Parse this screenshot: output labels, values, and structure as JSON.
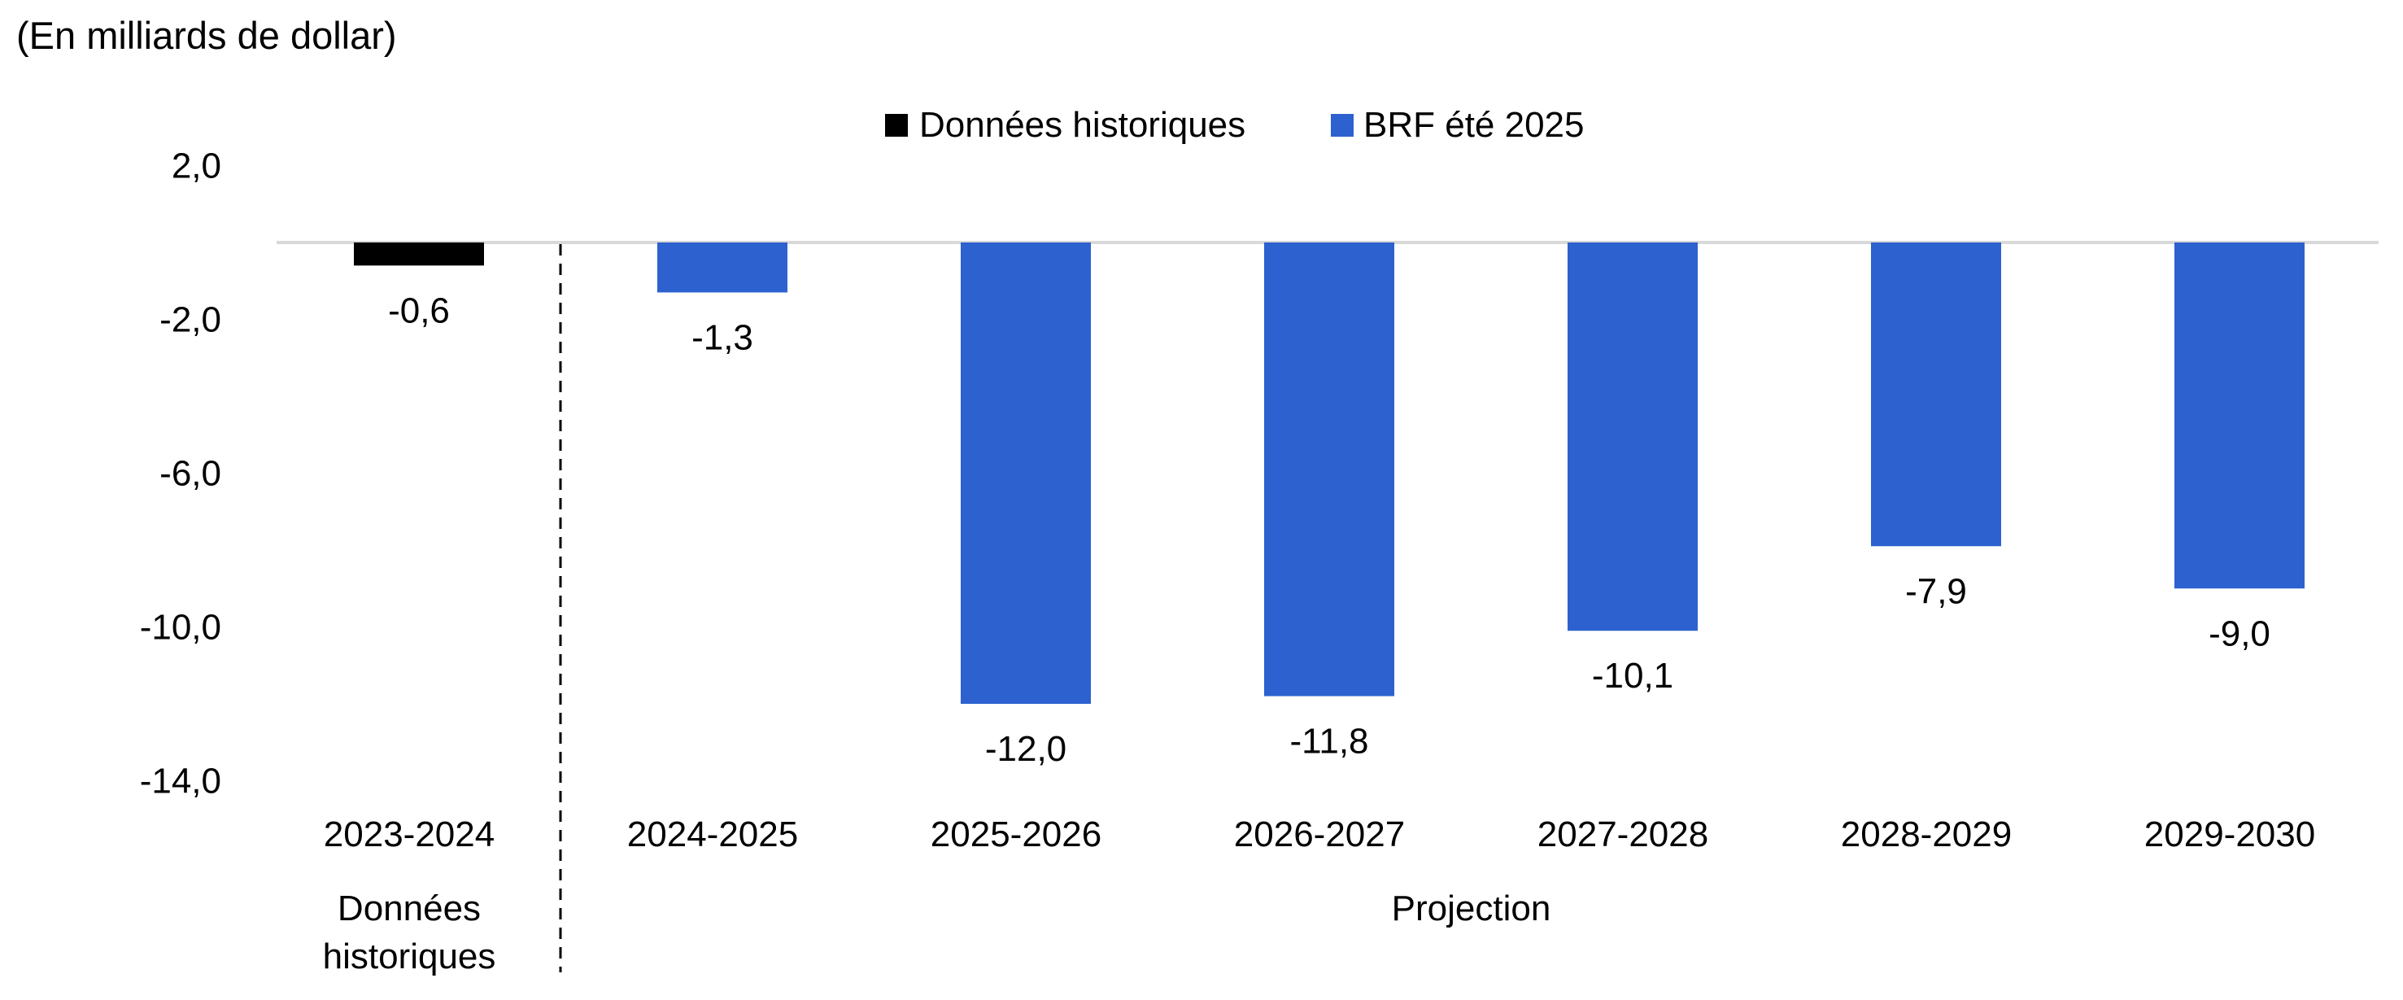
{
  "chart_data": {
    "type": "bar",
    "unit_label": "(En milliards de dollar)",
    "categories": [
      "2023-2024",
      "2024-2025",
      "2025-2026",
      "2026-2027",
      "2027-2028",
      "2028-2029",
      "2029-2030"
    ],
    "series": [
      {
        "name": "Données historiques",
        "color": "#000000",
        "values": [
          -0.6,
          null,
          null,
          null,
          null,
          null,
          null
        ]
      },
      {
        "name": "BRF été 2025",
        "color": "#2c61cf",
        "values": [
          null,
          -1.3,
          -12.0,
          -11.8,
          -10.1,
          -7.9,
          -9.0
        ]
      }
    ],
    "data_labels": [
      "-0,6",
      "-1,3",
      "-12,0",
      "-11,8",
      "-10,1",
      "-7,9",
      "-9,0"
    ],
    "yticks": [
      {
        "value": 2,
        "label": "2,0"
      },
      {
        "value": -2,
        "label": "-2,0"
      },
      {
        "value": -6,
        "label": "-6,0"
      },
      {
        "value": -10,
        "label": "-10,0"
      },
      {
        "value": -14,
        "label": "-14,0"
      }
    ],
    "ylim": [
      -14,
      2
    ],
    "groups": [
      {
        "label_lines": [
          "Données",
          "historiques"
        ],
        "span": [
          0,
          0
        ]
      },
      {
        "label_lines": [
          "Projection"
        ],
        "span": [
          1,
          6
        ]
      }
    ],
    "divider": "dashed line between 2023-2024 and 2024-2025",
    "legend_position": "top-center",
    "grid": false,
    "zero_line_color": "#d9d9d9"
  }
}
